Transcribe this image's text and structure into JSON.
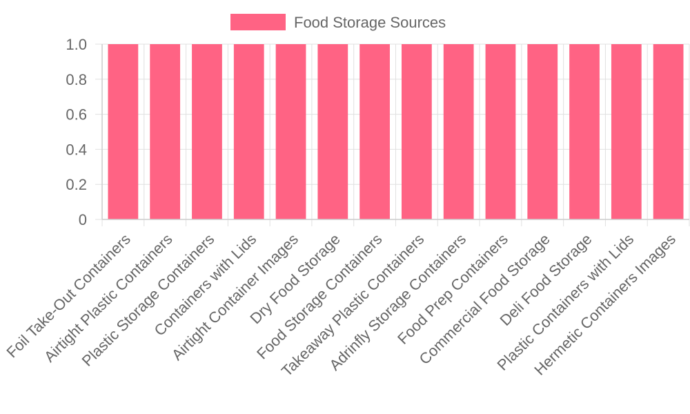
{
  "chart_data": {
    "type": "bar",
    "categories": [
      "Foil Take-Out Containers",
      "Airtight Plastic Containers",
      "Plastic Storage Containers",
      "Containers with Lids",
      "Airtight Container Images",
      "Dry Food Storage",
      "Food Storage Containers",
      "Takeaway Plastic Containers",
      "Adrinfly Storage Containers",
      "Food Prep Containers",
      "Commercial Food Storage",
      "Deli Food Storage",
      "Plastic Containers with Lids",
      "Hermetic Containers Images"
    ],
    "series": [
      {
        "name": "Food Storage Sources",
        "values": [
          1,
          1,
          1,
          1,
          1,
          1,
          1,
          1,
          1,
          1,
          1,
          1,
          1,
          1
        ],
        "color": "#ff6384"
      }
    ],
    "y_ticks": [
      "0",
      "0.2",
      "0.4",
      "0.6",
      "0.8",
      "1.0"
    ],
    "ylim": [
      0,
      1
    ],
    "grid": true,
    "legend_position": "top"
  }
}
